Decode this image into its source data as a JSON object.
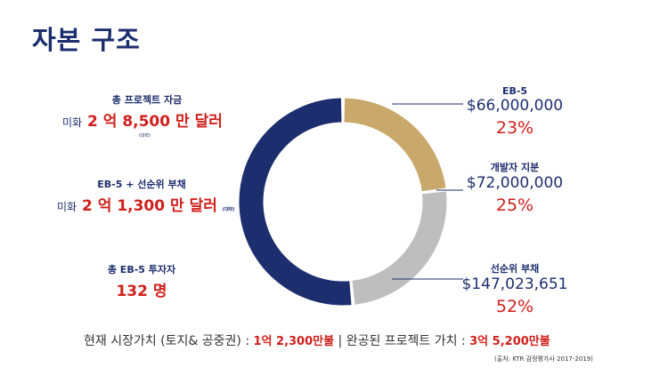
{
  "title": "자본 구조",
  "left": {
    "total_funding": {
      "label": "총 프로젝트 자금",
      "prefix": "미화",
      "value": "2 억 8,500 만 달러",
      "note": "(대략)"
    },
    "eb5_senior": {
      "label": "EB-5 + 선순위 부채",
      "prefix": "미화",
      "value": "2 억 1,300 만 달러",
      "note": "(대략)"
    },
    "investors": {
      "label": "총 EB-5 투자자",
      "value": "132 명"
    }
  },
  "chart_data": {
    "type": "pie",
    "donut": true,
    "slices": [
      {
        "name": "EB-5",
        "amount": "$66,000,000",
        "value": 66000000,
        "percent": "23%",
        "color": "#c9a86c"
      },
      {
        "name": "개발자 지분",
        "amount": "$72,000,000",
        "value": 72000000,
        "percent": "25%",
        "color": "#bebebe"
      },
      {
        "name": "선순위 부채",
        "amount": "$147,023,651",
        "value": 147023651,
        "percent": "52%",
        "color": "#1d2e6e"
      }
    ]
  },
  "bottom": {
    "market_label": "현재 시장가치 (토지& 공중권) : ",
    "market_value": "1억 2,300만불",
    "separator": " | ",
    "completed_label": "완공된 프로젝트 가치 : ",
    "completed_value": "3억 5,200만불",
    "source": "(출처: KTR 감정평가사 2017-2019)"
  }
}
